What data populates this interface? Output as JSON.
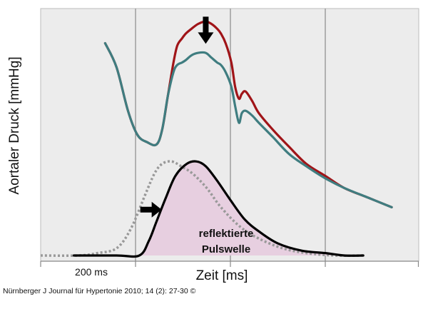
{
  "chart_data": {
    "type": "line",
    "xlabel": "Zeit [ms]",
    "ylabel": "Aortaler Druck [mmHg]",
    "scale_label": "200 ms",
    "annotation": {
      "line1": "reflektierte",
      "line2": "Pulswelle"
    },
    "grid": true,
    "x_unit_ms_per_division": 200,
    "series": [
      {
        "color": "#a01418",
        "style": "solid",
        "points": [
          [
            0.68,
            0.88
          ],
          [
            0.8,
            0.78
          ],
          [
            0.92,
            0.6
          ],
          [
            1.02,
            0.5
          ],
          [
            1.12,
            0.47
          ],
          [
            1.22,
            0.46
          ],
          [
            1.28,
            0.52
          ],
          [
            1.34,
            0.66
          ],
          [
            1.4,
            0.8
          ],
          [
            1.44,
            0.87
          ],
          [
            1.49,
            0.9
          ],
          [
            1.53,
            0.92
          ],
          [
            1.59,
            0.94
          ],
          [
            1.66,
            0.96
          ],
          [
            1.74,
            0.97
          ],
          [
            1.8,
            0.96
          ],
          [
            1.86,
            0.94
          ],
          [
            1.9,
            0.92
          ],
          [
            1.95,
            0.88
          ],
          [
            2.01,
            0.8
          ],
          [
            2.05,
            0.7
          ],
          [
            2.09,
            0.65
          ],
          [
            2.12,
            0.67
          ],
          [
            2.16,
            0.68
          ],
          [
            2.23,
            0.64
          ],
          [
            2.3,
            0.59
          ],
          [
            2.45,
            0.52
          ],
          [
            2.62,
            0.45
          ],
          [
            2.8,
            0.38
          ],
          [
            3.0,
            0.33
          ],
          [
            3.2,
            0.28
          ],
          [
            3.45,
            0.24
          ],
          [
            3.7,
            0.2
          ]
        ]
      },
      {
        "color": "#3f7d80",
        "style": "solid",
        "points": [
          [
            0.68,
            0.88
          ],
          [
            0.8,
            0.78
          ],
          [
            0.92,
            0.6
          ],
          [
            1.02,
            0.5
          ],
          [
            1.12,
            0.47
          ],
          [
            1.22,
            0.46
          ],
          [
            1.28,
            0.52
          ],
          [
            1.34,
            0.66
          ],
          [
            1.4,
            0.76
          ],
          [
            1.44,
            0.79
          ],
          [
            1.49,
            0.8
          ],
          [
            1.53,
            0.81
          ],
          [
            1.59,
            0.83
          ],
          [
            1.66,
            0.84
          ],
          [
            1.74,
            0.84
          ],
          [
            1.8,
            0.82
          ],
          [
            1.86,
            0.8
          ],
          [
            1.9,
            0.79
          ],
          [
            1.95,
            0.76
          ],
          [
            2.01,
            0.7
          ],
          [
            2.05,
            0.62
          ],
          [
            2.09,
            0.55
          ],
          [
            2.12,
            0.59
          ],
          [
            2.16,
            0.6
          ],
          [
            2.23,
            0.58
          ],
          [
            2.3,
            0.55
          ],
          [
            2.45,
            0.49
          ],
          [
            2.62,
            0.42
          ],
          [
            2.8,
            0.37
          ],
          [
            3.0,
            0.32
          ],
          [
            3.2,
            0.28
          ],
          [
            3.45,
            0.24
          ],
          [
            3.7,
            0.2
          ]
        ]
      },
      {
        "color": "#999999",
        "style": "dotted",
        "points": [
          [
            0.0,
            0.0
          ],
          [
            0.4,
            0.0
          ],
          [
            0.6,
            0.01
          ],
          [
            0.8,
            0.03
          ],
          [
            0.95,
            0.11
          ],
          [
            1.1,
            0.25
          ],
          [
            1.2,
            0.34
          ],
          [
            1.28,
            0.38
          ],
          [
            1.38,
            0.39
          ],
          [
            1.48,
            0.37
          ],
          [
            1.6,
            0.34
          ],
          [
            1.75,
            0.28
          ],
          [
            1.9,
            0.2
          ],
          [
            2.1,
            0.12
          ],
          [
            2.3,
            0.07
          ],
          [
            2.55,
            0.03
          ],
          [
            2.8,
            0.01
          ],
          [
            3.1,
            0.0
          ],
          [
            3.4,
            0.0
          ]
        ]
      },
      {
        "color": "#000000",
        "style": "solid",
        "fill": "#e7cfe0",
        "points": [
          [
            0.35,
            0.0
          ],
          [
            0.8,
            0.0
          ],
          [
            1.04,
            0.0
          ],
          [
            1.14,
            0.06
          ],
          [
            1.22,
            0.14
          ],
          [
            1.32,
            0.24
          ],
          [
            1.42,
            0.33
          ],
          [
            1.54,
            0.38
          ],
          [
            1.64,
            0.39
          ],
          [
            1.74,
            0.37
          ],
          [
            1.86,
            0.31
          ],
          [
            2.0,
            0.23
          ],
          [
            2.15,
            0.15
          ],
          [
            2.3,
            0.1
          ],
          [
            2.5,
            0.05
          ],
          [
            2.75,
            0.02
          ],
          [
            3.0,
            0.01
          ],
          [
            3.2,
            0.0
          ],
          [
            3.4,
            0.0
          ]
        ]
      }
    ],
    "arrows": [
      {
        "direction": "down",
        "at": [
          1.74,
          0.99
        ]
      },
      {
        "direction": "right",
        "at": [
          1.05,
          0.19
        ]
      }
    ]
  },
  "citation": "Nürnberger J Journal für Hypertonie 2010; 14 (2): 27-30 ©"
}
